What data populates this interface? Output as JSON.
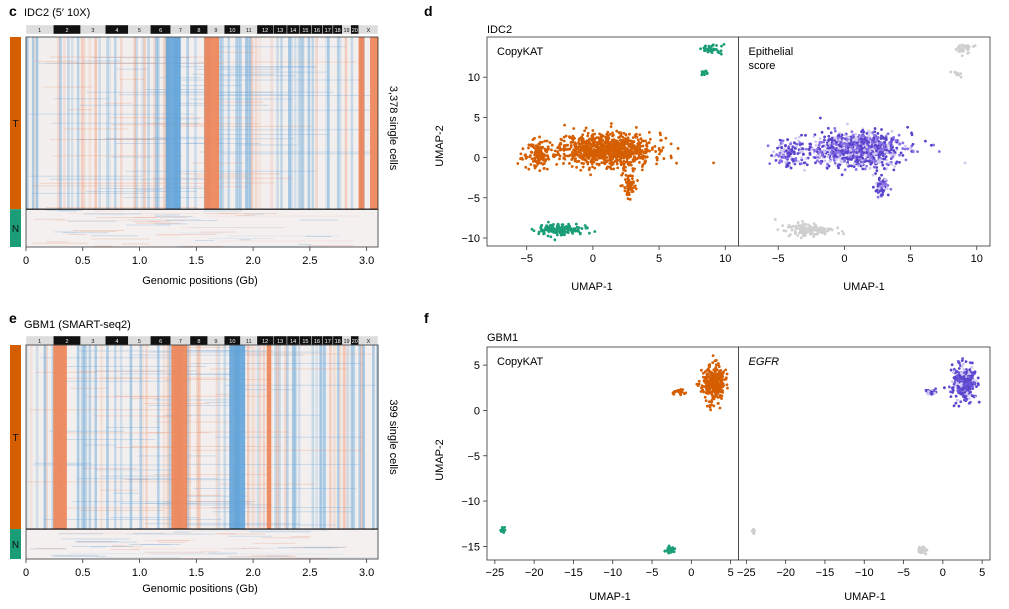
{
  "chart_data": [
    {
      "panel": "c",
      "type": "heatmap",
      "title": "IDC2 (5′ 10X)",
      "xlabel": "Genomic positions (Gb)",
      "ylabel": "3,378 single cells",
      "xlim": [
        0,
        3.1
      ],
      "x_ticks": [
        "0",
        "0.5",
        "1.0",
        "1.5",
        "2.0",
        "2.5",
        "3.0"
      ],
      "chromosomes": [
        "1",
        "2",
        "3",
        "4",
        "5",
        "6",
        "7",
        "8",
        "9",
        "10",
        "11",
        "12",
        "13",
        "14",
        "15",
        "16",
        "17",
        "18",
        "19",
        "20",
        "X"
      ],
      "row_groups": [
        {
          "label": "T",
          "fraction": 0.82,
          "color": "#d55e00"
        },
        {
          "label": "N",
          "fraction": 0.18,
          "color": "#1b9e77"
        }
      ],
      "gain_regions_gb": [
        [
          1.57,
          1.7
        ],
        [
          2.93,
          2.98
        ],
        [
          3.03,
          3.1
        ]
      ],
      "loss_regions_gb": [
        [
          1.23,
          1.36
        ]
      ]
    },
    {
      "panel": "e",
      "type": "heatmap",
      "title": "GBM1 (SMART-seq2)",
      "xlabel": "Genomic positions (Gb)",
      "ylabel": "399 single cells",
      "xlim": [
        0,
        3.1
      ],
      "x_ticks": [
        "0",
        "0.5",
        "1.0",
        "1.5",
        "2.0",
        "2.5",
        "3.0"
      ],
      "chromosomes": [
        "1",
        "2",
        "3",
        "4",
        "5",
        "6",
        "7",
        "8",
        "9",
        "10",
        "11",
        "12",
        "13",
        "14",
        "15",
        "16",
        "17",
        "18",
        "19",
        "20",
        "X"
      ],
      "row_groups": [
        {
          "label": "T",
          "fraction": 0.86,
          "color": "#d55e00"
        },
        {
          "label": "N",
          "fraction": 0.14,
          "color": "#1b9e77"
        }
      ],
      "gain_regions_gb": [
        [
          1.28,
          1.42
        ],
        [
          0.24,
          0.36
        ],
        [
          2.12,
          2.16
        ]
      ],
      "loss_regions_gb": [
        [
          1.79,
          1.93
        ]
      ]
    },
    {
      "panel": "d",
      "type": "scatter",
      "title": "IDC2",
      "xlabel": "UMAP-1",
      "ylabel": "UMAP-2",
      "xlim": [
        -8,
        11
      ],
      "ylim": [
        -11,
        15
      ],
      "x_ticks": [
        "−5",
        "0",
        "5",
        "10"
      ],
      "y_ticks": [
        "−10",
        "−5",
        "0",
        "5",
        "10"
      ],
      "subpanels": [
        {
          "label": "CopyKAT",
          "colors": {
            "tumor": "#d55e00",
            "normal": "#1b9e77"
          }
        },
        {
          "label": "Epithelial score",
          "colors": {
            "tumor": "#8a6fe6",
            "normal": "#cfcfcf"
          }
        }
      ],
      "clusters": [
        {
          "class": "tumor",
          "center": [
            1.0,
            1.0
          ],
          "spread": [
            3.2,
            1.9
          ],
          "n": 900
        },
        {
          "class": "tumor",
          "center": [
            2.8,
            -3.5
          ],
          "spread": [
            0.5,
            1.3
          ],
          "n": 60
        },
        {
          "class": "tumor",
          "center": [
            -4.2,
            0.3
          ],
          "spread": [
            1.0,
            1.5
          ],
          "n": 120
        },
        {
          "class": "normal",
          "center": [
            -2.5,
            -9.0
          ],
          "spread": [
            1.6,
            0.7
          ],
          "n": 150
        },
        {
          "class": "normal",
          "center": [
            9.0,
            13.5
          ],
          "spread": [
            0.6,
            0.5
          ],
          "n": 40
        },
        {
          "class": "normal",
          "center": [
            8.5,
            10.5
          ],
          "spread": [
            0.3,
            0.3
          ],
          "n": 12
        }
      ]
    },
    {
      "panel": "f",
      "type": "scatter",
      "title": "GBM1",
      "xlabel": "UMAP-1",
      "ylabel": "UMAP-2",
      "xlim": [
        -26,
        6
      ],
      "ylim": [
        -16.5,
        7
      ],
      "x_ticks": [
        "−25",
        "−20",
        "−15",
        "−10",
        "−5",
        "0",
        "5"
      ],
      "y_ticks": [
        "−15",
        "−10",
        "−5",
        "0",
        "5"
      ],
      "subpanels": [
        {
          "label": "CopyKAT",
          "colors": {
            "tumor": "#d55e00",
            "normal": "#1b9e77"
          }
        },
        {
          "label": "EGFR",
          "colors": {
            "tumor": "#6a55d8",
            "normal": "#cfcfcf"
          }
        }
      ],
      "clusters": [
        {
          "class": "tumor",
          "center": [
            2.8,
            3.0
          ],
          "spread": [
            1.3,
            1.8
          ],
          "n": 300
        },
        {
          "class": "tumor",
          "center": [
            -1.5,
            2.0
          ],
          "spread": [
            0.6,
            0.3
          ],
          "n": 25
        },
        {
          "class": "normal",
          "center": [
            -2.7,
            -15.4
          ],
          "spread": [
            0.6,
            0.3
          ],
          "n": 45
        },
        {
          "class": "normal",
          "center": [
            -24.0,
            -13.3
          ],
          "spread": [
            0.25,
            0.3
          ],
          "n": 10
        }
      ]
    }
  ],
  "panel_letters": {
    "c": "c",
    "d": "d",
    "e": "e",
    "f": "f"
  },
  "group_labels": {
    "tumor": "T",
    "normal": "N"
  }
}
